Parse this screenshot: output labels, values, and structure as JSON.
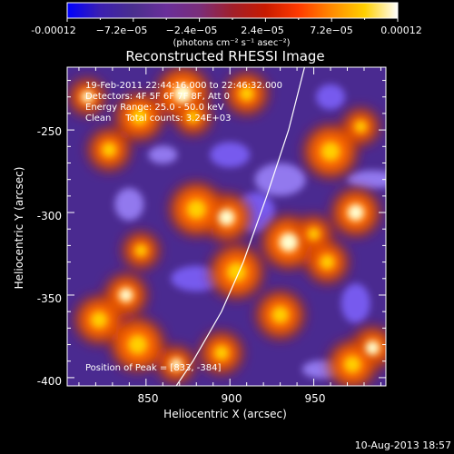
{
  "colorbar": {
    "ticks": [
      "-0.00012",
      "−7.2e−05",
      "−2.4e−05",
      "2.4e−05",
      "7.2e−05",
      "0.00012"
    ],
    "unit_label": "(photons cm⁻² s⁻¹ asec⁻²)",
    "range": [
      -0.00012,
      0.00012
    ],
    "colors": [
      "#0000ff",
      "#3b1fb0",
      "#4a2f8e",
      "#6a2f9a",
      "#7a2e7a",
      "#a11f2a",
      "#c81a00",
      "#ff3a00",
      "#ff8a00",
      "#ffd000",
      "#ffffff"
    ]
  },
  "image": {
    "title": "Reconstructed RHESSI Image",
    "info_lines": [
      "19-Feb-2011 22:44:16.000 to 22:46:32.000",
      "Detectors: 4F 5F 6F 7F 8F, Att 0",
      "Energy Range: 25.0 - 50.0 keV",
      "Clean     Total counts: 3.24E+03"
    ],
    "peak_label": "Position of Peak = [833, -384]",
    "xlabel": "Heliocentric X (arcsec)",
    "ylabel": "Heliocentric Y (arcsec)",
    "xticks": [
      "850",
      "900",
      "950"
    ],
    "yticks": [
      "-250",
      "-300",
      "-350",
      "-400"
    ],
    "timestamp": "10-Aug-2013 18:57"
  },
  "chart_data": {
    "type": "heatmap",
    "title": "Reconstructed RHESSI Image",
    "xlabel": "Heliocentric X (arcsec)",
    "ylabel": "Heliocentric Y (arcsec)",
    "xlim": [
      803,
      993
    ],
    "ylim": [
      -405,
      -212
    ],
    "xticks": [
      850,
      900,
      950
    ],
    "yticks": [
      -250,
      -300,
      -350,
      -400
    ],
    "z_range": [
      -0.00012,
      0.00012
    ],
    "colormap": "RHESSI blue-purple-red-yellow-white",
    "peak": [
      833,
      -384
    ],
    "hot_regions_xy": [
      [
        815,
        -230
      ],
      [
        828,
        -262
      ],
      [
        846,
        -242
      ],
      [
        872,
        -228
      ],
      [
        878,
        -242
      ],
      [
        910,
        -228
      ],
      [
        898,
        -303
      ],
      [
        880,
        -298
      ],
      [
        847,
        -323
      ],
      [
        838,
        -350
      ],
      [
        822,
        -365
      ],
      [
        845,
        -380
      ],
      [
        868,
        -392
      ],
      [
        895,
        -385
      ],
      [
        930,
        -362
      ],
      [
        935,
        -318
      ],
      [
        950,
        -313
      ],
      [
        958,
        -330
      ],
      [
        975,
        -300
      ],
      [
        960,
        -263
      ],
      [
        978,
        -248
      ],
      [
        985,
        -382
      ],
      [
        973,
        -392
      ],
      [
        904,
        -336
      ]
    ],
    "limb_curve": [
      [
        945,
        -210
      ],
      [
        935,
        -250
      ],
      [
        922,
        -290
      ],
      [
        908,
        -330
      ],
      [
        895,
        -360
      ],
      [
        878,
        -390
      ],
      [
        868,
        -405
      ]
    ]
  }
}
